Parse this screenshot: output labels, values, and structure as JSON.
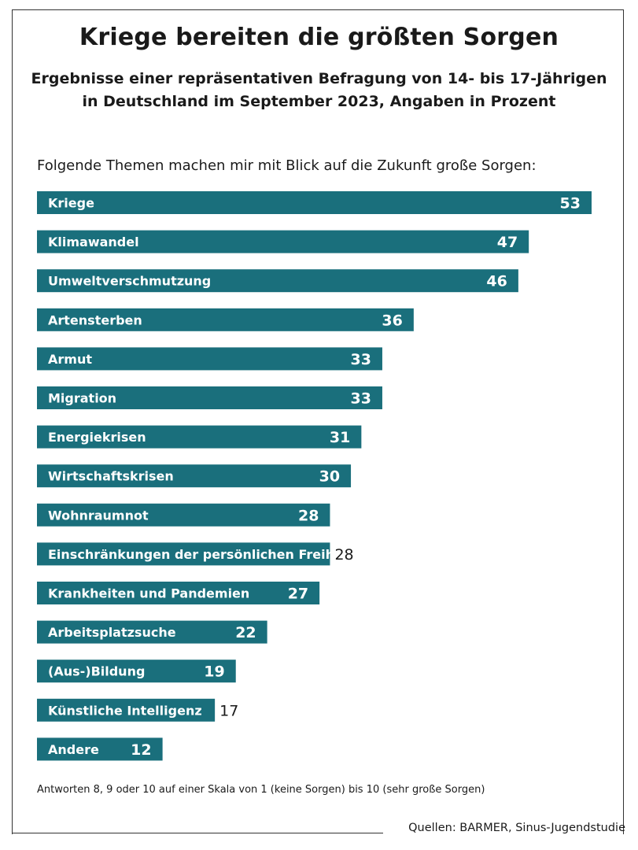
{
  "title": "Kriege bereiten die größten Sorgen",
  "subtitle_line1": "Ergebnisse einer repräsentativen Befragung von 14- bis 17-Jährigen",
  "subtitle_line2": "in Deutschland im September 2023, Angaben in Prozent",
  "question": "Folgende Themen machen mir mit Blick auf die Zukunft große Sorgen:",
  "footnote": "Antworten 8, 9 oder 10 auf einer Skala von 1 (keine Sorgen) bis 10 (sehr große Sorgen)",
  "source": "Quellen: BARMER, Sinus-Jugendstudie",
  "colors": {
    "bar": "#1a6f7c",
    "text": "#1a1a1a"
  },
  "chart_data": {
    "type": "bar",
    "orientation": "horizontal",
    "categories": [
      "Kriege",
      "Klimawandel",
      "Umweltverschmutzung",
      "Artensterben",
      "Armut",
      "Migration",
      "Energiekrisen",
      "Wirtschaftskrisen",
      "Wohnraumnot",
      "Einschränkungen der persönlichen Freiheit",
      "Krankheiten und Pandemien",
      "Arbeitsplatzsuche",
      "(Aus-)Bildung",
      "Künstliche Intelligenz",
      "Andere"
    ],
    "values": [
      53,
      47,
      46,
      36,
      33,
      33,
      31,
      30,
      28,
      28,
      27,
      22,
      19,
      17,
      12
    ],
    "value_labels_outside": [
      false,
      false,
      false,
      false,
      false,
      false,
      false,
      false,
      false,
      true,
      false,
      false,
      false,
      true,
      false
    ],
    "xlim": [
      0,
      53
    ],
    "grid": false,
    "legend": "none"
  }
}
